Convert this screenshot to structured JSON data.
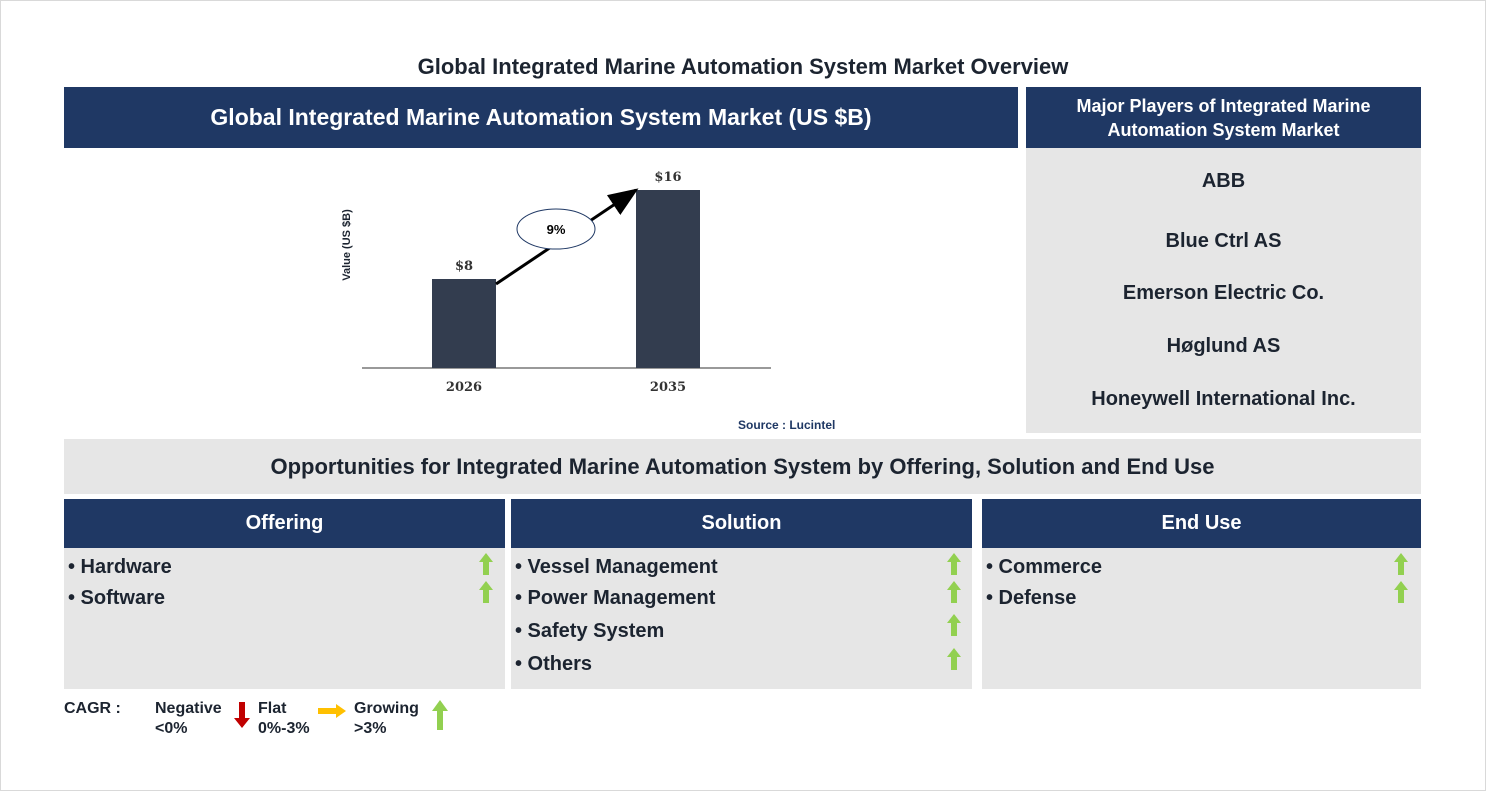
{
  "title": "Global Integrated Marine Automation System Market Overview",
  "chart_section": {
    "header": "Global Integrated Marine Automation System Market (US $B)",
    "source": "Source : Lucintel"
  },
  "chart_data": {
    "type": "bar",
    "categories": [
      "2026",
      "2035"
    ],
    "values": [
      8,
      16
    ],
    "value_labels": [
      "$8",
      "$16"
    ],
    "ylabel": "Value (US $B)",
    "cagr_label": "9%",
    "bar_color": "#333d4f"
  },
  "players": {
    "header_line1": "Major Players of Integrated Marine",
    "header_line2": "Automation System Market",
    "items": [
      "ABB",
      "Blue Ctrl AS",
      "Emerson Electric Co.",
      "Høglund AS",
      "Honeywell International Inc."
    ]
  },
  "opportunities": {
    "header": "Opportunities for Integrated Marine Automation System by Offering, Solution and End Use",
    "columns": [
      {
        "title": "Offering",
        "items": [
          "• Hardware",
          "• Software"
        ]
      },
      {
        "title": "Solution",
        "items": [
          "• Vessel Management",
          "• Power Management",
          "• Safety System",
          "• Others"
        ]
      },
      {
        "title": "End Use",
        "items": [
          "• Commerce",
          "• Defense"
        ]
      }
    ]
  },
  "legend": {
    "cagr": "CAGR  :",
    "negative_label": "Negative",
    "negative_range": "<0%",
    "flat_label": "Flat",
    "flat_range": "0%-3%",
    "growing_label": "Growing",
    "growing_range": ">3%"
  },
  "colors": {
    "navy": "#1f3864",
    "panel_grey": "#e6e6e6",
    "growing": "#92d050",
    "negative": "#c00000",
    "flat": "#ffc000"
  }
}
